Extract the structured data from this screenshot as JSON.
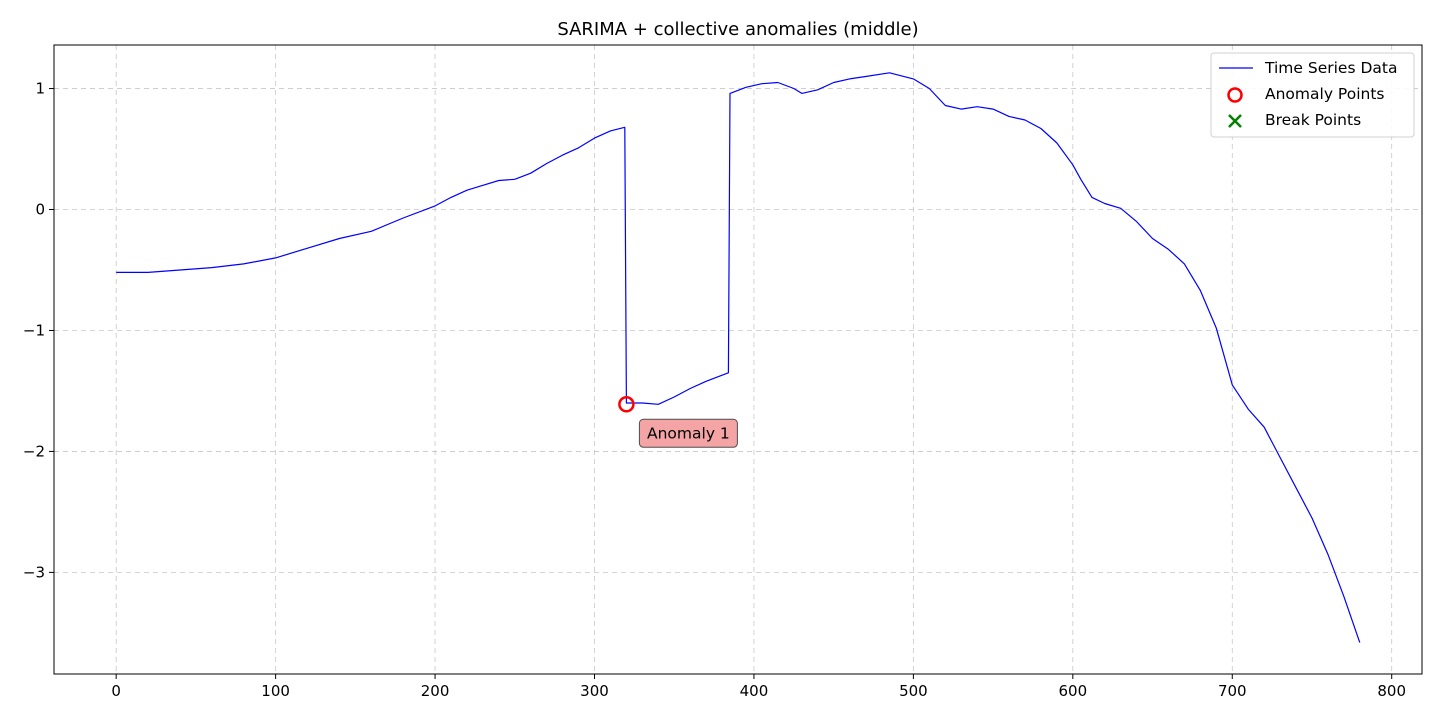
{
  "chart_data": {
    "type": "line",
    "title": "SARIMA + collective anomalies (middle)",
    "xlabel": "",
    "ylabel": "",
    "xlim": [
      -39,
      819
    ],
    "ylim": [
      -3.84,
      1.36
    ],
    "x_ticks": [
      0,
      100,
      200,
      300,
      400,
      500,
      600,
      700,
      800
    ],
    "y_ticks": [
      -3,
      -2,
      -1,
      0,
      1
    ],
    "y_tick_labels": [
      "−3",
      "−2",
      "−1",
      "0",
      "1"
    ],
    "grid": true,
    "legend_position": "top-right",
    "series": [
      {
        "name": "Time Series Data",
        "color": "#0000ff",
        "style": "line",
        "points": [
          [
            0,
            -0.52
          ],
          [
            20,
            -0.52
          ],
          [
            40,
            -0.5
          ],
          [
            60,
            -0.48
          ],
          [
            80,
            -0.45
          ],
          [
            100,
            -0.4
          ],
          [
            120,
            -0.32
          ],
          [
            140,
            -0.24
          ],
          [
            160,
            -0.18
          ],
          [
            180,
            -0.07
          ],
          [
            200,
            0.03
          ],
          [
            210,
            0.1
          ],
          [
            220,
            0.16
          ],
          [
            230,
            0.2
          ],
          [
            240,
            0.24
          ],
          [
            250,
            0.25
          ],
          [
            260,
            0.3
          ],
          [
            270,
            0.38
          ],
          [
            280,
            0.45
          ],
          [
            290,
            0.51
          ],
          [
            300,
            0.59
          ],
          [
            310,
            0.65
          ],
          [
            319,
            0.68
          ],
          [
            320,
            -1.6
          ],
          [
            330,
            -1.6
          ],
          [
            340,
            -1.61
          ],
          [
            350,
            -1.55
          ],
          [
            360,
            -1.48
          ],
          [
            370,
            -1.42
          ],
          [
            380,
            -1.37
          ],
          [
            384,
            -1.35
          ],
          [
            385,
            0.96
          ],
          [
            395,
            1.01
          ],
          [
            405,
            1.04
          ],
          [
            415,
            1.05
          ],
          [
            425,
            1.0
          ],
          [
            430,
            0.96
          ],
          [
            440,
            0.99
          ],
          [
            450,
            1.05
          ],
          [
            460,
            1.08
          ],
          [
            470,
            1.1
          ],
          [
            485,
            1.13
          ],
          [
            500,
            1.08
          ],
          [
            510,
            1.0
          ],
          [
            520,
            0.86
          ],
          [
            530,
            0.83
          ],
          [
            540,
            0.85
          ],
          [
            550,
            0.83
          ],
          [
            560,
            0.77
          ],
          [
            570,
            0.74
          ],
          [
            580,
            0.67
          ],
          [
            590,
            0.55
          ],
          [
            600,
            0.37
          ],
          [
            605,
            0.25
          ],
          [
            612,
            0.1
          ],
          [
            620,
            0.05
          ],
          [
            630,
            0.01
          ],
          [
            640,
            -0.1
          ],
          [
            650,
            -0.24
          ],
          [
            660,
            -0.33
          ],
          [
            670,
            -0.45
          ],
          [
            680,
            -0.67
          ],
          [
            690,
            -0.98
          ],
          [
            700,
            -1.45
          ],
          [
            710,
            -1.65
          ],
          [
            720,
            -1.8
          ],
          [
            730,
            -2.05
          ],
          [
            740,
            -2.3
          ],
          [
            750,
            -2.55
          ],
          [
            760,
            -2.85
          ],
          [
            770,
            -3.2
          ],
          [
            780,
            -3.58
          ]
        ]
      },
      {
        "name": "Anomaly Points",
        "color": "#ff0000",
        "style": "hollow-circle",
        "points": [
          [
            320,
            -1.61
          ]
        ]
      },
      {
        "name": "Break Points",
        "color": "#008000",
        "style": "x-marker",
        "points": []
      }
    ],
    "annotations": [
      {
        "text": "Anomaly 1",
        "x": 320,
        "y": -1.61,
        "box_color": "#f4a0a0"
      }
    ]
  }
}
